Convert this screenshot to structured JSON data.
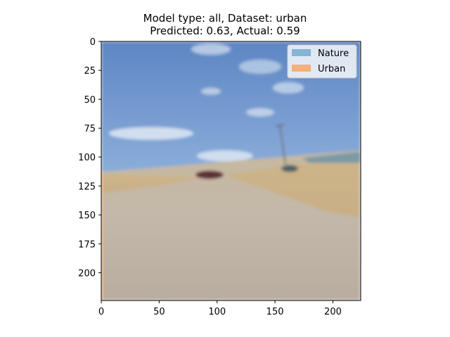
{
  "title": "Model type: all, Dataset: urban",
  "subtitle": "Predicted: 0.63, Actual: 0.59",
  "chart_data": {
    "type": "heatmap",
    "title": "Model type: all, Dataset: urban",
    "subtitle": "Predicted: 0.63, Actual: 0.59",
    "xlabel": "",
    "ylabel": "",
    "xlim": [
      0,
      224
    ],
    "ylim": [
      224,
      0
    ],
    "xticks": [
      0,
      50,
      100,
      150,
      200
    ],
    "yticks": [
      0,
      25,
      50,
      75,
      100,
      125,
      150,
      175,
      200
    ],
    "image_rows": 224,
    "image_cols": 224,
    "overlay": "Urban-colored band along left edge (cols 0–1, rows ~112–224)",
    "legend": {
      "placement": "top-right",
      "entries": [
        {
          "name": "Nature",
          "color": "#85b4d6"
        },
        {
          "name": "Urban",
          "color": "#f5b07a"
        }
      ]
    }
  }
}
